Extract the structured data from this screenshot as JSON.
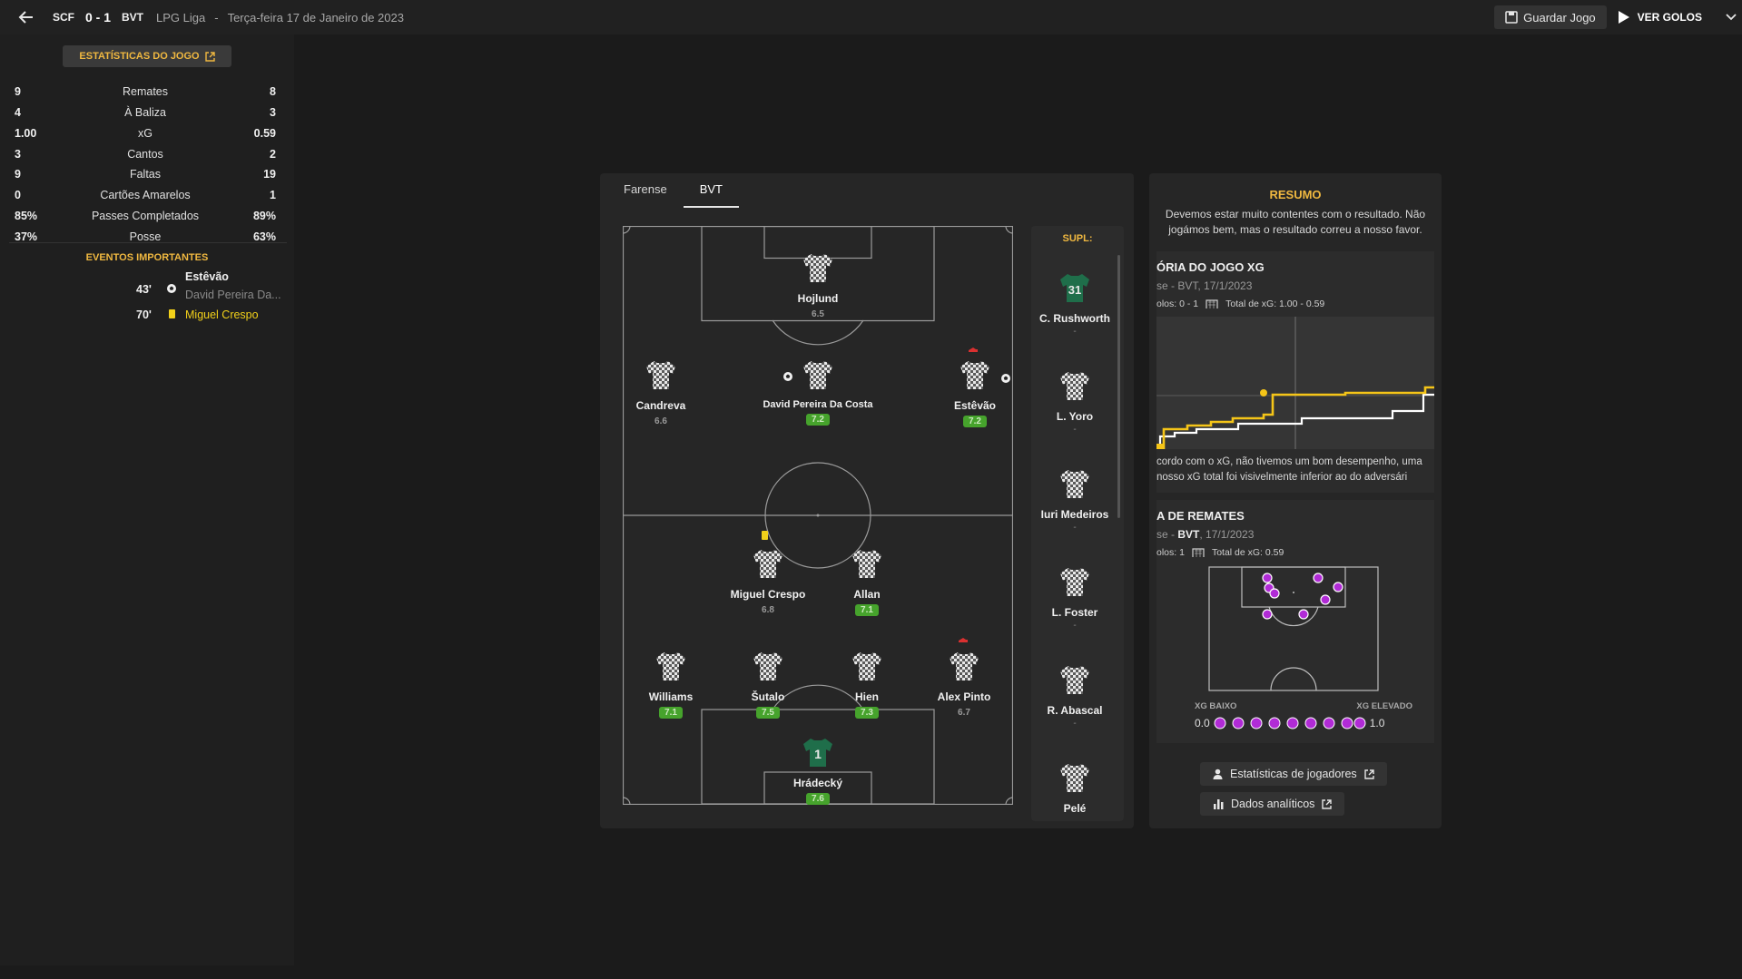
{
  "header": {
    "home": "SCF",
    "score": "0 - 1",
    "away": "BVT",
    "competition": "LPG Liga",
    "separator": "-",
    "date": "Terça-feira 17 de Janeiro de 2023",
    "save_label": "Guardar Jogo",
    "goals_label": "VER GOLOS"
  },
  "stats": {
    "tab_label": "ESTATÍSTICAS DO JOGO",
    "rows": [
      {
        "home": "9",
        "label": "Remates",
        "away": "8"
      },
      {
        "home": "4",
        "label": "À Baliza",
        "away": "3"
      },
      {
        "home": "1.00",
        "label": "xG",
        "away": "0.59"
      },
      {
        "home": "3",
        "label": "Cantos",
        "away": "2"
      },
      {
        "home": "9",
        "label": "Faltas",
        "away": "19"
      },
      {
        "home": "0",
        "label": "Cartões Amarelos",
        "away": "1"
      },
      {
        "home": "85%",
        "label": "Passes Completados",
        "away": "89%"
      },
      {
        "home": "37%",
        "label": "Posse",
        "away": "63%"
      }
    ]
  },
  "events": {
    "title": "EVENTOS IMPORTANTES",
    "items": [
      {
        "minute": "43'",
        "player": "Estêvão",
        "assist": "David Pereira Da..."
      },
      {
        "minute": "70'",
        "player": "Miguel Crespo"
      }
    ]
  },
  "lineup": {
    "tabs": [
      "Farense",
      "BVT"
    ],
    "players": [
      {
        "name": "Hojlund",
        "rating": "6.5",
        "good": false
      },
      {
        "name": "Candreva",
        "rating": "6.6",
        "good": false
      },
      {
        "name": "David Pereira Da Costa",
        "rating": "7.2",
        "good": true
      },
      {
        "name": "Estêvão",
        "rating": "7.2",
        "good": true
      },
      {
        "name": "Miguel Crespo",
        "rating": "6.8",
        "good": false
      },
      {
        "name": "Allan",
        "rating": "7.1",
        "good": true
      },
      {
        "name": "Williams",
        "rating": "7.1",
        "good": true
      },
      {
        "name": "Šutalo",
        "rating": "7.5",
        "good": true
      },
      {
        "name": "Hien",
        "rating": "7.3",
        "good": true
      },
      {
        "name": "Alex Pinto",
        "rating": "6.7",
        "good": false
      },
      {
        "name": "Hrádecký",
        "rating": "7.6",
        "good": true
      }
    ],
    "subs_title": "SUPL:",
    "subs": [
      {
        "name": "C. Rushworth",
        "num": "31",
        "dash": "-"
      },
      {
        "name": "L. Yoro",
        "dash": "-"
      },
      {
        "name": "Iuri Medeiros",
        "dash": "-"
      },
      {
        "name": "L. Foster",
        "dash": "-"
      },
      {
        "name": "R. Abascal",
        "dash": "-"
      },
      {
        "name": "Pelé",
        "dash": ""
      }
    ],
    "gk_number": "1"
  },
  "summary": {
    "title": "RESUMO",
    "text": "Devemos estar muito contentes com o resultado. Não jogámos bem, mas o resultado correu a nosso favor.",
    "xg_title": "ÓRIA DO JOGO XG",
    "xg_sub": "se - BVT, 17/1/2023",
    "xg_goals": "olos: 0 - 1",
    "xg_total": "Total de xG: 1.00 - 0.59",
    "xg_text_1": "cordo com o xG, não tivemos um bom desempenho, uma",
    "xg_text_2": "nosso xG total foi visivelmente inferior ao do adversári",
    "shot_title": "A DE REMATES",
    "shot_sub_pre": "se - ",
    "shot_sub_team": "BVT",
    "shot_sub_post": ", 17/1/2023",
    "shot_goals": "olos: 1",
    "shot_total": "Total de xG: 0.59",
    "legend_low": "XG BAIXO",
    "legend_high": "XG ELEVADO",
    "legend_min": "0.0",
    "legend_max": "1.0",
    "btn_players": "Estatísticas de jogadores",
    "btn_analytics": "Dados analíticos"
  },
  "colors": {
    "accent": "#f0b840",
    "good_rating": "#46a32c",
    "xg_home": "#ffffff",
    "xg_away": "#f5c518",
    "shot_marker": "#b12bd6"
  }
}
